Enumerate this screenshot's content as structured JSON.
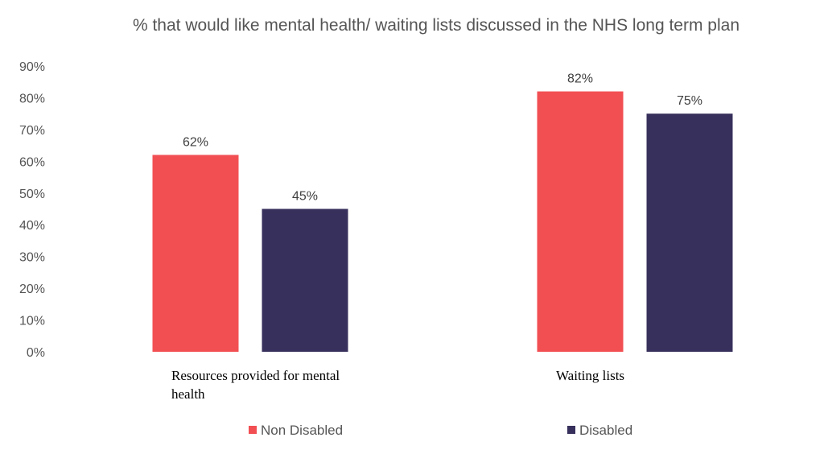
{
  "chart_data": {
    "type": "bar",
    "title": "% that would like mental health/ waiting lists discussed in the NHS long term plan",
    "categories": [
      [
        "Resources provided for mental",
        "health"
      ],
      [
        "Waiting lists"
      ]
    ],
    "series": [
      {
        "name": "Non Disabled",
        "color": "#f24f53",
        "values": [
          62,
          82
        ],
        "labels": [
          "62%",
          "82%"
        ]
      },
      {
        "name": "Disabled",
        "color": "#37305c",
        "values": [
          45,
          75
        ],
        "labels": [
          "45%",
          "75%"
        ]
      }
    ],
    "ylim": [
      0,
      90
    ],
    "yticks": [
      "0%",
      "10%",
      "20%",
      "30%",
      "40%",
      "50%",
      "60%",
      "70%",
      "80%",
      "90%"
    ],
    "grid": false,
    "legend": "bottom"
  }
}
